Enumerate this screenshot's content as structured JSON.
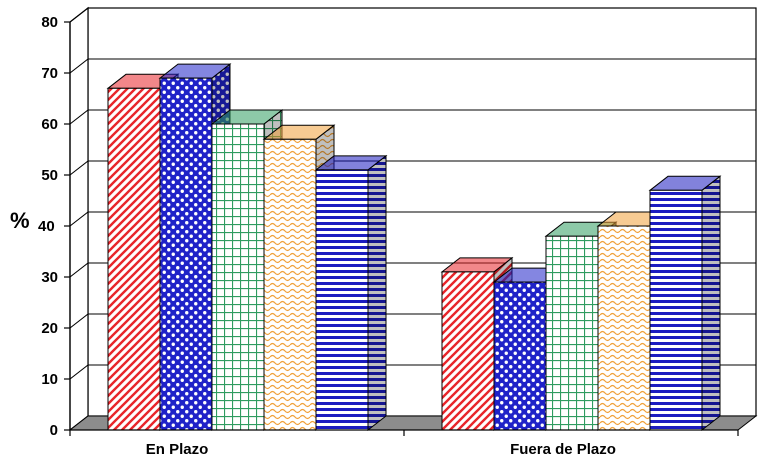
{
  "chart_data": {
    "type": "bar",
    "style": "3d-clustered",
    "categories": [
      "En Plazo",
      "Fuera de Plazo"
    ],
    "series": [
      {
        "values": [
          67,
          31
        ],
        "color": "#e8252a",
        "pattern": "diagonal-stripes"
      },
      {
        "values": [
          69,
          29
        ],
        "color": "#1f22c8",
        "pattern": "dots"
      },
      {
        "values": [
          60,
          38
        ],
        "color": "#2f9c60",
        "pattern": "grid"
      },
      {
        "values": [
          57,
          40
        ],
        "color": "#f0a13a",
        "pattern": "waves"
      },
      {
        "values": [
          51,
          47
        ],
        "color": "#1c1cc0",
        "pattern": "horizontal-stripes"
      }
    ],
    "ylabel": "%",
    "ylim": [
      0,
      80
    ],
    "yticks": [
      0,
      10,
      20,
      30,
      40,
      50,
      60,
      70,
      80
    ],
    "grid": true,
    "legend": "none"
  }
}
